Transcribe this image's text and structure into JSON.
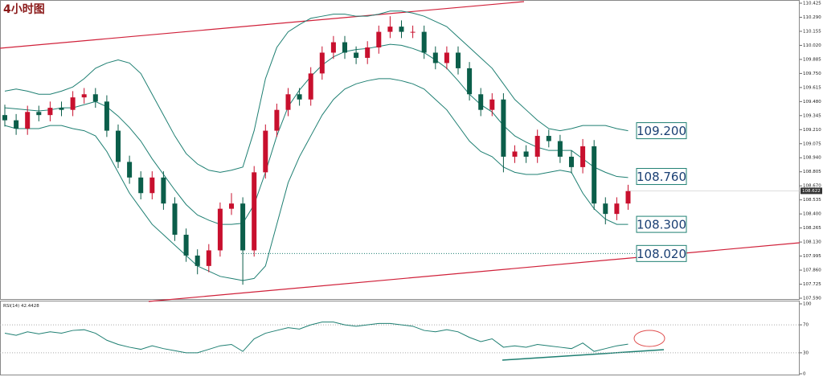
{
  "chart_data": {
    "type": "candlestick",
    "title": "4小时图",
    "ylim": [
      107.59,
      110.425
    ],
    "yticks": [
      110.425,
      {
        "value": 110.29,
        "label": "110.290"
      },
      110.155,
      {
        "value": 110.02,
        "label": "110.020"
      },
      109.885,
      {
        "value": 109.75,
        "label": "109.750"
      },
      109.615,
      {
        "value": 109.48,
        "label": "109.480"
      },
      109.345,
      {
        "value": 109.21,
        "label": "109.210"
      },
      109.075,
      {
        "value": 108.94,
        "label": "108.940"
      },
      108.805,
      {
        "value": 108.67,
        "label": "108.670"
      },
      108.535,
      {
        "value": 108.4,
        "label": "108.400"
      },
      108.265,
      {
        "value": 108.13,
        "label": "108.130"
      },
      107.995,
      {
        "value": 107.86,
        "label": "107.860"
      },
      107.725,
      {
        "value": 107.59,
        "label": "107.590"
      }
    ],
    "grid": false,
    "up_color": "#c8102e",
    "down_color": "#0b5e4a",
    "open": [
      109.35,
      109.3,
      109.22,
      109.38,
      109.35,
      109.42,
      109.4,
      109.52,
      109.55,
      109.48,
      109.2,
      108.9,
      108.75,
      108.6,
      108.75,
      108.5,
      108.2,
      108.0,
      107.9,
      108.05,
      108.45,
      108.5,
      108.05,
      108.8,
      109.2,
      109.4,
      109.55,
      109.5,
      109.75,
      109.95,
      110.05,
      109.95,
      109.9,
      110.0,
      110.15,
      110.2,
      110.15,
      110.15,
      109.95,
      109.85,
      109.95,
      109.8,
      109.55,
      109.4,
      109.5,
      108.95,
      109.0,
      108.95,
      109.15,
      109.1,
      108.95,
      108.85,
      109.05,
      108.5,
      108.4,
      108.5
    ],
    "high": [
      109.45,
      109.36,
      109.44,
      109.44,
      109.48,
      109.48,
      109.58,
      109.61,
      109.61,
      109.54,
      109.26,
      108.96,
      108.81,
      108.81,
      108.81,
      108.56,
      108.26,
      108.06,
      108.11,
      108.51,
      108.6,
      108.56,
      108.86,
      109.26,
      109.46,
      109.61,
      109.61,
      109.81,
      110.01,
      110.11,
      110.11,
      110.01,
      110.06,
      110.21,
      110.3,
      110.26,
      110.21,
      110.21,
      110.01,
      110.01,
      110.01,
      109.86,
      109.61,
      109.56,
      109.56,
      109.06,
      109.06,
      109.21,
      109.21,
      109.16,
      109.01,
      109.12,
      109.11,
      108.56,
      108.56,
      108.68
    ],
    "low": [
      109.24,
      109.16,
      109.16,
      109.29,
      109.29,
      109.34,
      109.34,
      109.46,
      109.42,
      109.14,
      108.84,
      108.69,
      108.54,
      108.54,
      108.44,
      108.14,
      107.94,
      107.82,
      107.84,
      107.99,
      108.39,
      107.72,
      107.99,
      108.74,
      109.14,
      109.34,
      109.44,
      109.44,
      109.69,
      109.89,
      109.89,
      109.84,
      109.84,
      109.94,
      110.09,
      110.09,
      110.09,
      109.89,
      109.79,
      109.79,
      109.74,
      109.49,
      109.34,
      109.34,
      108.8,
      108.89,
      108.89,
      108.89,
      109.04,
      108.89,
      108.79,
      108.79,
      108.44,
      108.3,
      108.34,
      108.44
    ],
    "close": [
      109.3,
      109.22,
      109.38,
      109.35,
      109.42,
      109.4,
      109.52,
      109.55,
      109.48,
      109.2,
      108.9,
      108.75,
      108.6,
      108.75,
      108.5,
      108.2,
      108.0,
      107.9,
      108.05,
      108.45,
      108.5,
      108.05,
      108.8,
      109.2,
      109.4,
      109.55,
      109.5,
      109.75,
      109.95,
      110.05,
      109.95,
      109.9,
      110.0,
      110.15,
      110.2,
      110.15,
      110.15,
      109.95,
      109.85,
      109.95,
      109.8,
      109.55,
      109.4,
      109.5,
      108.95,
      109.0,
      108.95,
      109.15,
      109.1,
      108.95,
      108.85,
      109.05,
      108.5,
      108.4,
      108.5,
      108.62
    ],
    "last_price": 108.622,
    "bollinger": {
      "color": "#1e7f72",
      "upper": [
        109.58,
        109.6,
        109.58,
        109.55,
        109.55,
        109.58,
        109.62,
        109.7,
        109.8,
        109.85,
        109.88,
        109.85,
        109.75,
        109.55,
        109.35,
        109.15,
        108.98,
        108.88,
        108.82,
        108.8,
        108.82,
        108.85,
        109.2,
        109.7,
        110.0,
        110.15,
        110.22,
        110.28,
        110.3,
        110.32,
        110.32,
        110.3,
        110.3,
        110.32,
        110.35,
        110.35,
        110.33,
        110.3,
        110.25,
        110.2,
        110.1,
        110.0,
        109.9,
        109.8,
        109.65,
        109.5,
        109.4,
        109.3,
        109.22,
        109.2,
        109.22,
        109.25,
        109.25,
        109.25,
        109.22,
        109.2
      ],
      "middle": [
        109.42,
        109.41,
        109.4,
        109.39,
        109.4,
        109.42,
        109.42,
        109.45,
        109.48,
        109.43,
        109.34,
        109.23,
        109.1,
        108.93,
        108.78,
        108.63,
        108.49,
        108.39,
        108.34,
        108.3,
        108.3,
        108.31,
        108.49,
        108.8,
        109.15,
        109.43,
        109.59,
        109.72,
        109.83,
        109.91,
        109.96,
        109.98,
        109.99,
        110.01,
        110.03,
        110.02,
        109.99,
        109.95,
        109.88,
        109.8,
        109.68,
        109.55,
        109.45,
        109.38,
        109.25,
        109.15,
        109.09,
        109.04,
        109.01,
        109.01,
        109.01,
        108.93,
        108.85,
        108.8,
        108.76,
        108.75
      ],
      "lower": [
        109.25,
        109.22,
        109.22,
        109.22,
        109.25,
        109.25,
        109.22,
        109.2,
        109.15,
        109.0,
        108.8,
        108.6,
        108.45,
        108.3,
        108.2,
        108.1,
        108.0,
        107.9,
        107.85,
        107.8,
        107.78,
        107.76,
        107.78,
        107.9,
        108.3,
        108.7,
        108.95,
        109.15,
        109.35,
        109.5,
        109.6,
        109.65,
        109.68,
        109.7,
        109.7,
        109.68,
        109.65,
        109.6,
        109.5,
        109.4,
        109.25,
        109.1,
        109.0,
        108.95,
        108.85,
        108.8,
        108.78,
        108.78,
        108.8,
        108.82,
        108.8,
        108.6,
        108.45,
        108.35,
        108.3,
        108.3
      ]
    },
    "price_labels": [
      {
        "value": 109.2,
        "label": "109.200"
      },
      {
        "value": 108.76,
        "label": "108.760"
      },
      {
        "value": 108.3,
        "label": "108.300"
      },
      {
        "value": 108.02,
        "label": "108.020"
      }
    ],
    "rsi": {
      "name": "RSI(14)",
      "color": "#1e7f72",
      "ylim": [
        0,
        100
      ],
      "yticks": [
        100,
        70,
        30,
        0
      ],
      "values": [
        58,
        55,
        60,
        57,
        60,
        58,
        62,
        63,
        58,
        48,
        42,
        38,
        35,
        40,
        36,
        33,
        30,
        30,
        35,
        40,
        42,
        32,
        50,
        58,
        62,
        66,
        64,
        70,
        74,
        74,
        70,
        68,
        70,
        72,
        72,
        70,
        68,
        62,
        60,
        63,
        60,
        52,
        46,
        50,
        38,
        40,
        38,
        42,
        40,
        38,
        36,
        44,
        32,
        36,
        40,
        42.4428
      ]
    }
  }
}
